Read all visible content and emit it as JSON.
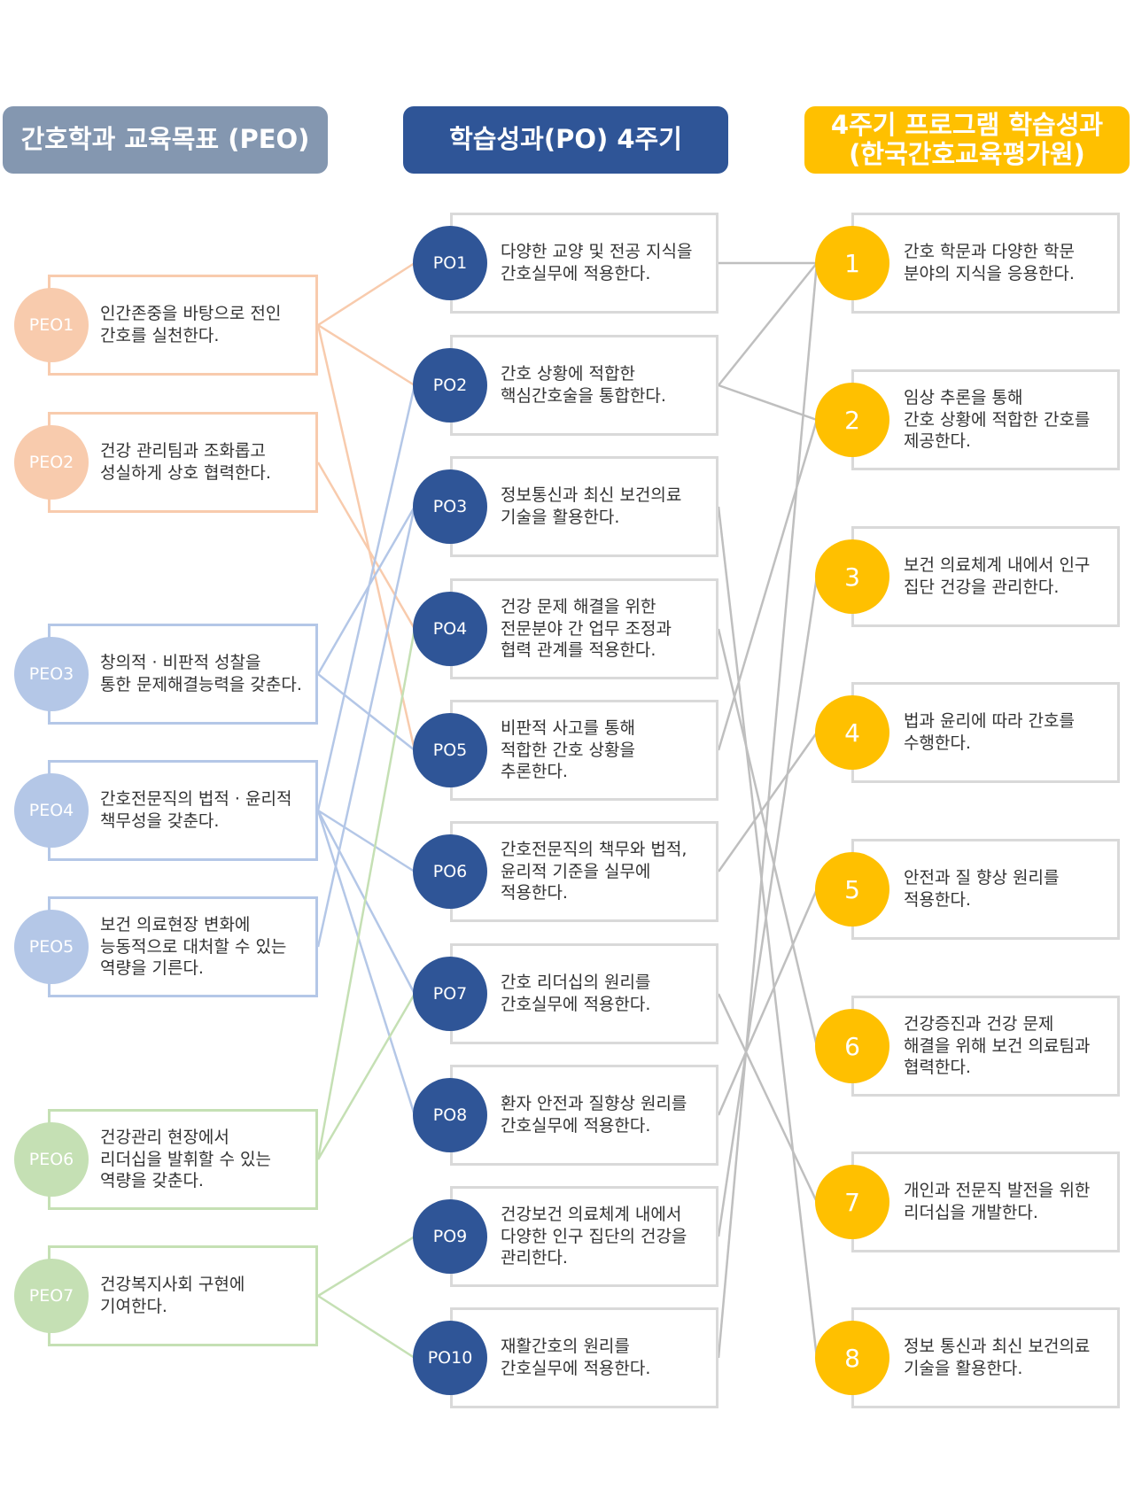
{
  "headers": {
    "peo": "간호학과 교육목표 (PEO)",
    "po": "학습성과(PO) 4주기",
    "outcomes": "4주기 프로그램 학습성과\n(한국간호교육평가원)"
  },
  "colors": {
    "peo_header": "#8497b0",
    "po_header": "#2f5597",
    "outcome_header": "#ffc000",
    "peo_orange": "#f8cbad",
    "peo_blue": "#b4c7e7",
    "peo_green": "#c5e0b4",
    "po_circle": "#2f5597",
    "outcome_circle": "#ffc000",
    "line_gray": "#bfbfbf"
  },
  "peos": [
    {
      "id": "PEO1",
      "text": "인간존중을 바탕으로 전인\n간호를 실천한다.",
      "group": "orange",
      "links": [
        1,
        2,
        5
      ]
    },
    {
      "id": "PEO2",
      "text": "건강 관리팀과 조화롭고\n성실하게 상호 협력한다.",
      "group": "orange",
      "links": [
        4
      ]
    },
    {
      "id": "PEO3",
      "text": "창의적 · 비판적 성찰을\n통한 문제해결능력을 갖춘다.",
      "group": "blue",
      "links": [
        3,
        5
      ]
    },
    {
      "id": "PEO4",
      "text": "간호전문직의 법적 · 윤리적\n책무성을 갖춘다.",
      "group": "blue",
      "links": [
        2,
        6,
        7,
        8
      ]
    },
    {
      "id": "PEO5",
      "text": "보건 의료현장 변화에\n능동적으로 대처할 수 있는\n역량을 기른다.",
      "group": "blue",
      "links": [
        3
      ]
    },
    {
      "id": "PEO6",
      "text": "건강관리 현장에서\n리더십을 발휘할 수 있는\n역량을 갖춘다.",
      "group": "green",
      "links": [
        4,
        7
      ]
    },
    {
      "id": "PEO7",
      "text": "건강복지사회 구현에\n기여한다.",
      "group": "green",
      "links": [
        9,
        10
      ]
    }
  ],
  "pos": [
    {
      "id": "PO1",
      "text": "다양한 교양 및 전공 지식을\n간호실무에 적용한다.",
      "links": [
        1
      ]
    },
    {
      "id": "PO2",
      "text": "간호 상황에 적합한\n핵심간호술을 통합한다.",
      "links": [
        1,
        2
      ]
    },
    {
      "id": "PO3",
      "text": "정보통신과 최신 보건의료\n기술을 활용한다.",
      "links": [
        8
      ]
    },
    {
      "id": "PO4",
      "text": "건강 문제 해결을 위한\n전문분야 간 업무 조정과\n협력 관계를 적용한다.",
      "links": [
        6
      ]
    },
    {
      "id": "PO5",
      "text": "비판적 사고를 통해\n적합한 간호 상황을\n추론한다.",
      "links": [
        2
      ]
    },
    {
      "id": "PO6",
      "text": "간호전문직의 책무와 법적,\n윤리적 기준을 실무에\n적용한다.",
      "links": [
        4
      ]
    },
    {
      "id": "PO7",
      "text": "간호 리더십의 원리를\n간호실무에 적용한다.",
      "links": [
        7
      ]
    },
    {
      "id": "PO8",
      "text": "환자 안전과 질향상 원리를\n간호실무에 적용한다.",
      "links": [
        5
      ]
    },
    {
      "id": "PO9",
      "text": "건강보건 의료체계 내에서\n다양한 인구 집단의 건강을\n관리한다.",
      "links": [
        3
      ]
    },
    {
      "id": "PO10",
      "text": "재활간호의 원리를\n간호실무에 적용한다.",
      "links": [
        1
      ]
    }
  ],
  "outcomes": [
    {
      "id": "1",
      "text": "간호 학문과 다양한 학문\n분야의 지식을 응용한다."
    },
    {
      "id": "2",
      "text": "임상 추론을 통해\n간호 상황에 적합한 간호를\n제공한다."
    },
    {
      "id": "3",
      "text": "보건 의료체계 내에서 인구\n집단 건강을 관리한다."
    },
    {
      "id": "4",
      "text": "법과 윤리에 따라 간호를\n수행한다."
    },
    {
      "id": "5",
      "text": "안전과 질 향상 원리를\n적용한다."
    },
    {
      "id": "6",
      "text": "건강증진과 건강 문제\n해결을 위해 보건 의료팀과\n협력한다."
    },
    {
      "id": "7",
      "text": "개인과 전문직 발전을 위한\n리더십을 개발한다."
    },
    {
      "id": "8",
      "text": "정보 통신과 최신 보건의료\n기술을 활용한다."
    }
  ]
}
